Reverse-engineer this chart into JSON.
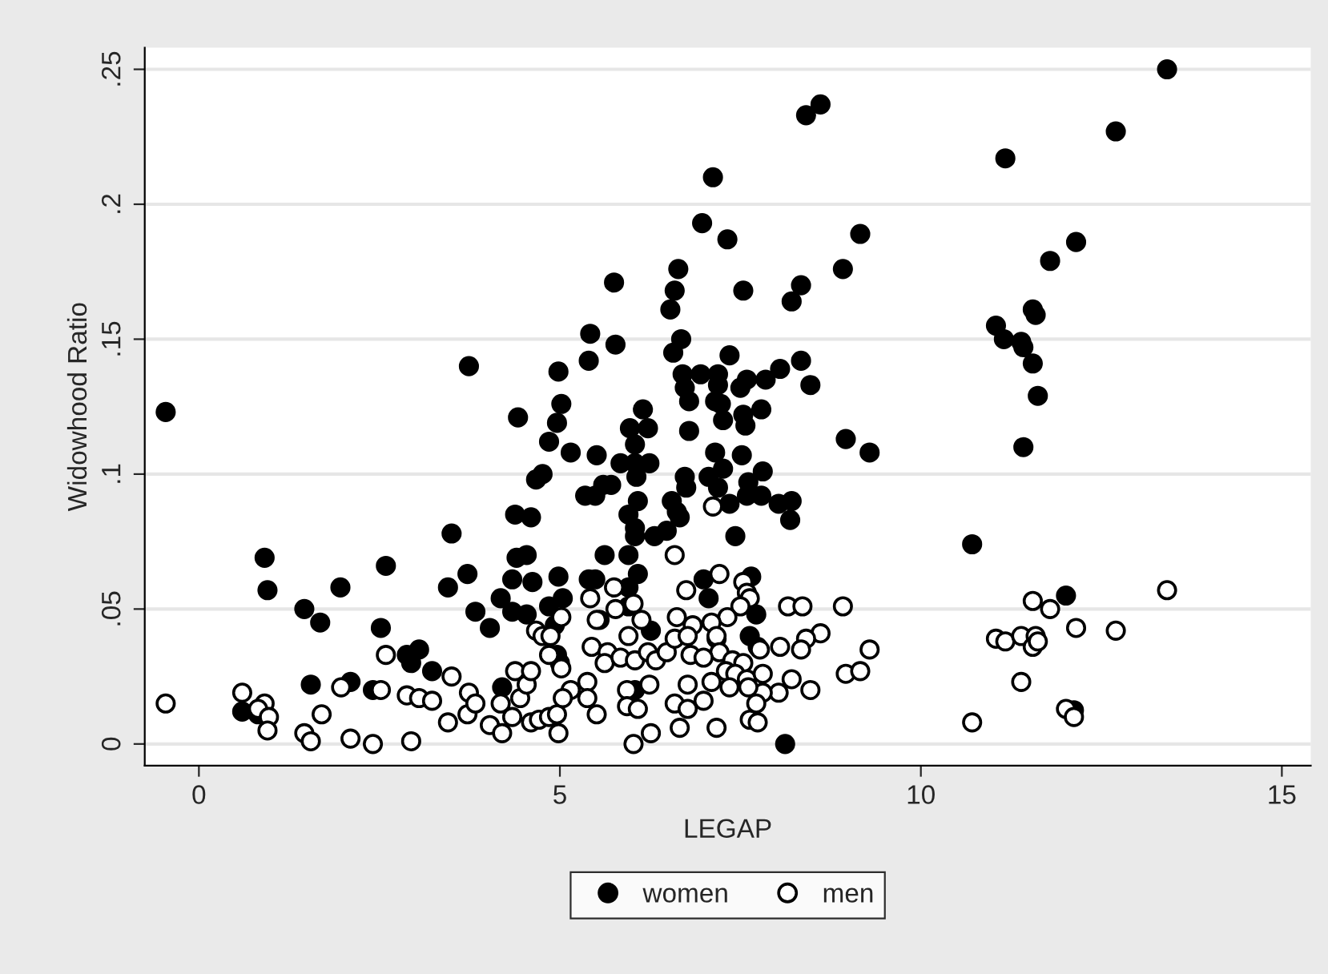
{
  "chart_data": {
    "type": "scatter",
    "xlabel": "LEGAP",
    "ylabel": "Widowhood Ratio",
    "xlim": [
      -0.75,
      15.4
    ],
    "xticks": [
      0,
      5,
      10,
      15
    ],
    "ylim": [
      -0.008,
      0.258
    ],
    "yticks": [
      {
        "value": 0,
        "label": "0"
      },
      {
        "value": 0.05,
        "label": ".05"
      },
      {
        "value": 0.1,
        "label": ".1"
      },
      {
        "value": 0.15,
        "label": ".15"
      },
      {
        "value": 0.2,
        "label": ".2"
      },
      {
        "value": 0.25,
        "label": ".25"
      }
    ],
    "grid": "y",
    "legend": "bottom",
    "marker": "circle",
    "series": [
      {
        "name": "women",
        "color": "#000000",
        "x": [
          -0.46,
          0.91,
          0.95,
          1.46,
          1.68,
          1.96,
          2.59,
          2.52,
          3.74,
          3.5,
          3.45,
          3.72,
          3.83,
          4.03,
          4.18,
          4.38,
          4.6,
          4.42,
          4.85,
          4.67,
          4.76,
          4.4,
          4.54,
          4.34,
          4.62,
          4.85,
          4.34,
          4.54,
          2.88,
          3.05,
          2.94,
          3.23,
          1.55,
          2.1,
          2.41,
          0.6,
          0.82,
          4.2,
          5.02,
          4.98,
          4.96,
          8.61,
          8.41,
          7.12,
          6.97,
          7.32,
          9.16,
          8.92,
          8.34,
          8.21,
          6.64,
          6.59,
          6.53,
          7.54,
          5.75,
          5.42,
          5.77,
          5.4,
          6.68,
          6.57,
          7.35,
          8.34,
          8.47,
          8.05,
          7.85,
          7.59,
          7.5,
          6.7,
          6.95,
          7.19,
          7.19,
          6.73,
          6.79,
          7.15,
          7.23,
          7.79,
          7.54,
          7.26,
          6.15,
          5.97,
          6.22,
          6.79,
          7.57,
          5.15,
          5.51,
          5.84,
          6.04,
          6.04,
          6.24,
          7.15,
          7.52,
          8.96,
          9.29,
          5.35,
          5.49,
          5.6,
          5.71,
          6.06,
          6.73,
          6.75,
          7.06,
          7.19,
          7.26,
          7.61,
          7.81,
          7.59,
          7.79,
          7.35,
          8.03,
          8.21,
          8.19,
          6.08,
          6.55,
          6.62,
          6.66,
          5.95,
          6.04,
          6.04,
          6.31,
          6.48,
          7.43,
          5.62,
          5.95,
          6.08,
          4.98,
          5.4,
          5.49,
          5.95,
          5.95,
          5.04,
          6.99,
          7.06,
          7.65,
          7.72,
          5.55,
          4.93,
          6.26,
          7.17,
          7.63,
          7.74,
          4.96,
          5.0,
          6.04,
          8.12,
          13.41,
          12.7,
          11.17,
          12.15,
          11.79,
          11.55,
          11.59,
          11.04,
          11.15,
          11.39,
          11.42,
          11.55,
          11.62,
          11.42,
          10.71,
          12.01,
          12.12
        ],
        "values": [
          0.123,
          0.069,
          0.057,
          0.05,
          0.045,
          0.058,
          0.066,
          0.043,
          0.14,
          0.078,
          0.058,
          0.063,
          0.049,
          0.043,
          0.054,
          0.085,
          0.084,
          0.121,
          0.112,
          0.098,
          0.1,
          0.069,
          0.07,
          0.061,
          0.06,
          0.051,
          0.049,
          0.048,
          0.033,
          0.035,
          0.03,
          0.027,
          0.022,
          0.023,
          0.02,
          0.012,
          0.011,
          0.021,
          0.126,
          0.138,
          0.119,
          0.237,
          0.233,
          0.21,
          0.193,
          0.187,
          0.189,
          0.176,
          0.17,
          0.164,
          0.176,
          0.168,
          0.161,
          0.168,
          0.171,
          0.152,
          0.148,
          0.142,
          0.15,
          0.145,
          0.144,
          0.142,
          0.133,
          0.139,
          0.135,
          0.135,
          0.132,
          0.137,
          0.137,
          0.137,
          0.133,
          0.132,
          0.127,
          0.127,
          0.126,
          0.124,
          0.122,
          0.12,
          0.124,
          0.117,
          0.117,
          0.116,
          0.118,
          0.108,
          0.107,
          0.104,
          0.111,
          0.104,
          0.104,
          0.108,
          0.107,
          0.113,
          0.108,
          0.092,
          0.092,
          0.096,
          0.096,
          0.099,
          0.099,
          0.095,
          0.099,
          0.095,
          0.102,
          0.097,
          0.101,
          0.092,
          0.092,
          0.089,
          0.089,
          0.09,
          0.083,
          0.09,
          0.09,
          0.086,
          0.084,
          0.085,
          0.08,
          0.077,
          0.077,
          0.079,
          0.077,
          0.07,
          0.07,
          0.063,
          0.062,
          0.061,
          0.061,
          0.058,
          0.051,
          0.054,
          0.061,
          0.054,
          0.062,
          0.048,
          0.046,
          0.044,
          0.042,
          0.039,
          0.04,
          0.036,
          0.033,
          0.03,
          0.02,
          0.0,
          0.25,
          0.227,
          0.217,
          0.186,
          0.179,
          0.161,
          0.159,
          0.155,
          0.15,
          0.149,
          0.147,
          0.141,
          0.129,
          0.11,
          0.074,
          0.055,
          0.0125
        ]
      },
      {
        "name": "men",
        "color": "#ffffff",
        "x": [
          13.41,
          11.55,
          11.79,
          12.15,
          12.7,
          11.04,
          11.17,
          11.39,
          11.59,
          11.55,
          11.62,
          11.39,
          12.01,
          12.12,
          10.71,
          -0.46,
          0.6,
          0.91,
          0.82,
          0.97,
          0.95,
          1.46,
          1.55,
          1.7,
          1.97,
          2.1,
          2.41,
          2.52,
          2.59,
          2.88,
          3.05,
          3.23,
          2.94,
          3.45,
          3.5,
          3.72,
          3.74,
          3.83,
          4.03,
          4.18,
          4.2,
          4.34,
          4.38,
          4.45,
          4.54,
          4.6,
          4.6,
          4.71,
          4.85,
          4.67,
          4.76,
          4.87,
          4.85,
          4.96,
          7.12,
          6.59,
          7.21,
          6.75,
          7.54,
          7.59,
          7.63,
          5.75,
          5.42,
          6.02,
          5.77,
          7.5,
          7.32,
          6.62,
          6.84,
          7.1,
          8.16,
          8.36,
          8.92,
          8.61,
          8.41,
          8.34,
          9.29,
          8.96,
          9.16,
          8.05,
          8.21,
          8.47,
          5.02,
          5.51,
          6.13,
          5.95,
          5.44,
          5.66,
          5.62,
          5.02,
          5.84,
          6.04,
          6.22,
          6.33,
          6.48,
          6.59,
          6.77,
          6.81,
          7.17,
          7.21,
          6.99,
          7.39,
          7.54,
          7.77,
          7.3,
          7.43,
          7.59,
          7.81,
          8.03,
          7.81,
          7.61,
          7.35,
          7.1,
          6.77,
          6.24,
          5.93,
          5.38,
          5.15,
          5.04,
          5.38,
          5.51,
          6.59,
          6.77,
          6.99,
          5.93,
          6.08,
          7.72,
          7.63,
          7.74,
          7.17,
          6.66,
          6.26,
          6.02,
          4.98
        ],
        "values": [
          0.057,
          0.053,
          0.05,
          0.043,
          0.042,
          0.039,
          0.038,
          0.04,
          0.04,
          0.036,
          0.038,
          0.023,
          0.013,
          0.01,
          0.008,
          0.015,
          0.019,
          0.015,
          0.013,
          0.01,
          0.005,
          0.004,
          0.001,
          0.011,
          0.021,
          0.002,
          0.0,
          0.02,
          0.033,
          0.018,
          0.017,
          0.016,
          0.001,
          0.008,
          0.025,
          0.011,
          0.019,
          0.015,
          0.007,
          0.015,
          0.004,
          0.01,
          0.027,
          0.017,
          0.022,
          0.027,
          0.008,
          0.009,
          0.01,
          0.042,
          0.04,
          0.04,
          0.033,
          0.011,
          0.088,
          0.07,
          0.063,
          0.057,
          0.06,
          0.056,
          0.054,
          0.058,
          0.054,
          0.052,
          0.05,
          0.051,
          0.047,
          0.047,
          0.044,
          0.045,
          0.051,
          0.051,
          0.051,
          0.041,
          0.039,
          0.035,
          0.035,
          0.026,
          0.027,
          0.036,
          0.024,
          0.02,
          0.047,
          0.046,
          0.046,
          0.04,
          0.036,
          0.034,
          0.03,
          0.028,
          0.032,
          0.031,
          0.034,
          0.031,
          0.034,
          0.039,
          0.04,
          0.033,
          0.04,
          0.034,
          0.032,
          0.031,
          0.03,
          0.035,
          0.027,
          0.026,
          0.024,
          0.026,
          0.019,
          0.019,
          0.021,
          0.021,
          0.023,
          0.022,
          0.022,
          0.02,
          0.023,
          0.02,
          0.017,
          0.017,
          0.011,
          0.015,
          0.013,
          0.016,
          0.014,
          0.013,
          0.015,
          0.009,
          0.008,
          0.006,
          0.006,
          0.004,
          0.0,
          0.004
        ]
      }
    ]
  }
}
